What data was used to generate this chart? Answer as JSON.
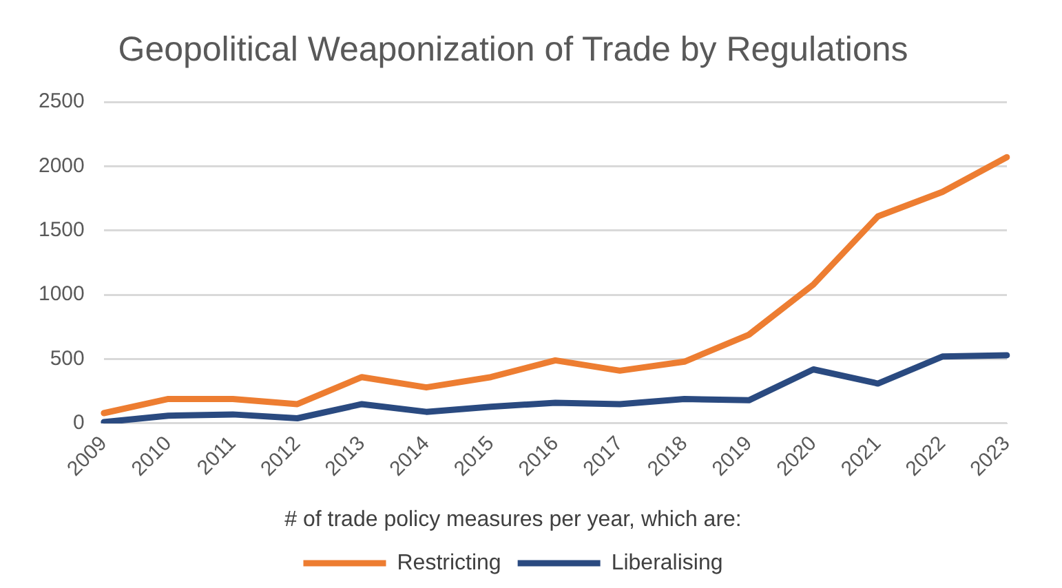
{
  "chart_data": {
    "type": "line",
    "title": "Geopolitical Weaponization of Trade by Regulations",
    "legend_title": "# of trade policy measures per year, which are:",
    "categories": [
      "2009",
      "2010",
      "2011",
      "2012",
      "2013",
      "2014",
      "2015",
      "2016",
      "2017",
      "2018",
      "2019",
      "2020",
      "2021",
      "2022",
      "2023"
    ],
    "series": [
      {
        "name": "Restricting",
        "color": "#ed7d31",
        "values": [
          80,
          190,
          190,
          150,
          360,
          280,
          360,
          490,
          410,
          480,
          690,
          1080,
          1610,
          1800,
          2070
        ]
      },
      {
        "name": "Liberalising",
        "color": "#2a4a80",
        "values": [
          10,
          60,
          70,
          40,
          150,
          90,
          130,
          160,
          150,
          190,
          180,
          420,
          310,
          520,
          530
        ]
      }
    ],
    "ylim": [
      0,
      2500
    ],
    "yticks": [
      0,
      500,
      1000,
      1500,
      2000,
      2500
    ],
    "grid": "y",
    "legend": "bottom",
    "marker": "none",
    "line_style": "solid"
  }
}
